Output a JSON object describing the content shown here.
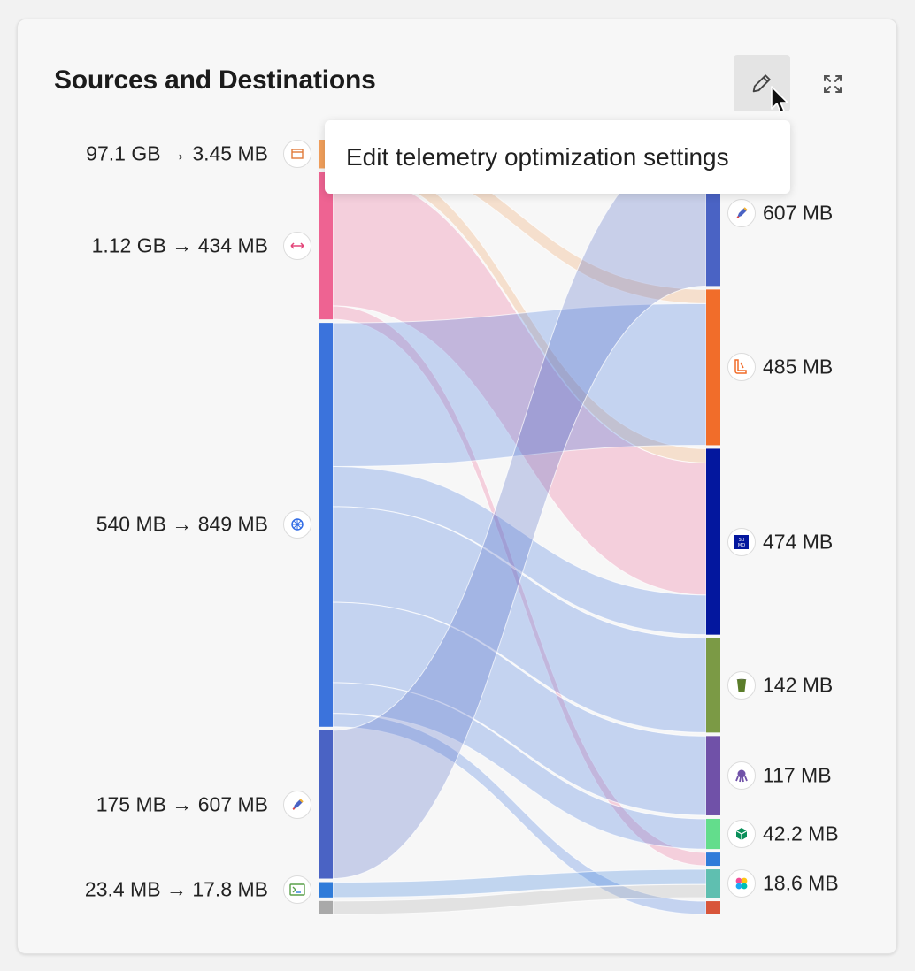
{
  "panel": {
    "title": "Sources and Destinations",
    "tooltip": "Edit telemetry optimization settings",
    "edit_icon": "pencil-icon",
    "expand_icon": "expand-icon"
  },
  "chart_data": {
    "type": "sankey",
    "title": "Sources and Destinations",
    "sources": [
      {
        "id": "s1",
        "label": "97.1 GB → 3.45 MB",
        "color": "#f2a05c",
        "icon": "window-icon"
      },
      {
        "id": "s2",
        "label": "1.12 GB → 434 MB",
        "color": "#ee6392",
        "icon": "arrows-horizontal-icon"
      },
      {
        "id": "s3",
        "label": "540 MB → 849 MB",
        "color": "#3b73dc",
        "icon": "kubernetes-icon"
      },
      {
        "id": "s4",
        "label": "175 MB → 607 MB",
        "color": "#4a63c4",
        "icon": "pen-icon"
      },
      {
        "id": "s5",
        "label": "23.4 MB → 17.8 MB",
        "color": "#2f7bd9",
        "icon": "terminal-icon"
      },
      {
        "id": "s6",
        "label": "",
        "color": "#a9a9a9",
        "icon": ""
      }
    ],
    "destinations": [
      {
        "id": "d1",
        "label": "607 MB",
        "color": "#4a63c4",
        "icon": "pen-icon"
      },
      {
        "id": "d2",
        "label": "485 MB",
        "color": "#f16d2a",
        "icon": "boot-icon"
      },
      {
        "id": "d3",
        "label": "474 MB",
        "color": "#03179e",
        "icon": "sumo-icon"
      },
      {
        "id": "d4",
        "label": "142 MB",
        "color": "#7b9a45",
        "icon": "bucket-icon"
      },
      {
        "id": "d5",
        "label": "117 MB",
        "color": "#7051a8",
        "icon": "octopus-icon"
      },
      {
        "id": "d6",
        "label": "42.2 MB",
        "color": "#63dd8c",
        "icon": "cube-icon"
      },
      {
        "id": "d7",
        "label": "",
        "color": "#2f7bd9",
        "icon": ""
      },
      {
        "id": "d8",
        "label": "18.6 MB",
        "color": "#5fbfb0",
        "icon": "pinwheel-icon"
      },
      {
        "id": "d9",
        "label": "",
        "color": "#d8553a",
        "icon": ""
      }
    ],
    "links": [
      {
        "source": "s1",
        "target": "d2",
        "value": 1.5
      },
      {
        "source": "s1",
        "target": "d3",
        "value": 1.5
      },
      {
        "source": "s2",
        "target": "d3",
        "value": 14
      },
      {
        "source": "s2",
        "target": "d7",
        "value": 1.4
      },
      {
        "source": "s3",
        "target": "d2",
        "value": 15
      },
      {
        "source": "s3",
        "target": "d3",
        "value": 4.2
      },
      {
        "source": "s3",
        "target": "d4",
        "value": 10
      },
      {
        "source": "s3",
        "target": "d5",
        "value": 8.4
      },
      {
        "source": "s3",
        "target": "d6",
        "value": 3.2
      },
      {
        "source": "s3",
        "target": "d9",
        "value": 1.4
      },
      {
        "source": "s4",
        "target": "d1",
        "value": 15.5
      },
      {
        "source": "s5",
        "target": "d8",
        "value": 1.6
      },
      {
        "source": "s6",
        "target": "d8",
        "value": 1.4
      }
    ]
  }
}
